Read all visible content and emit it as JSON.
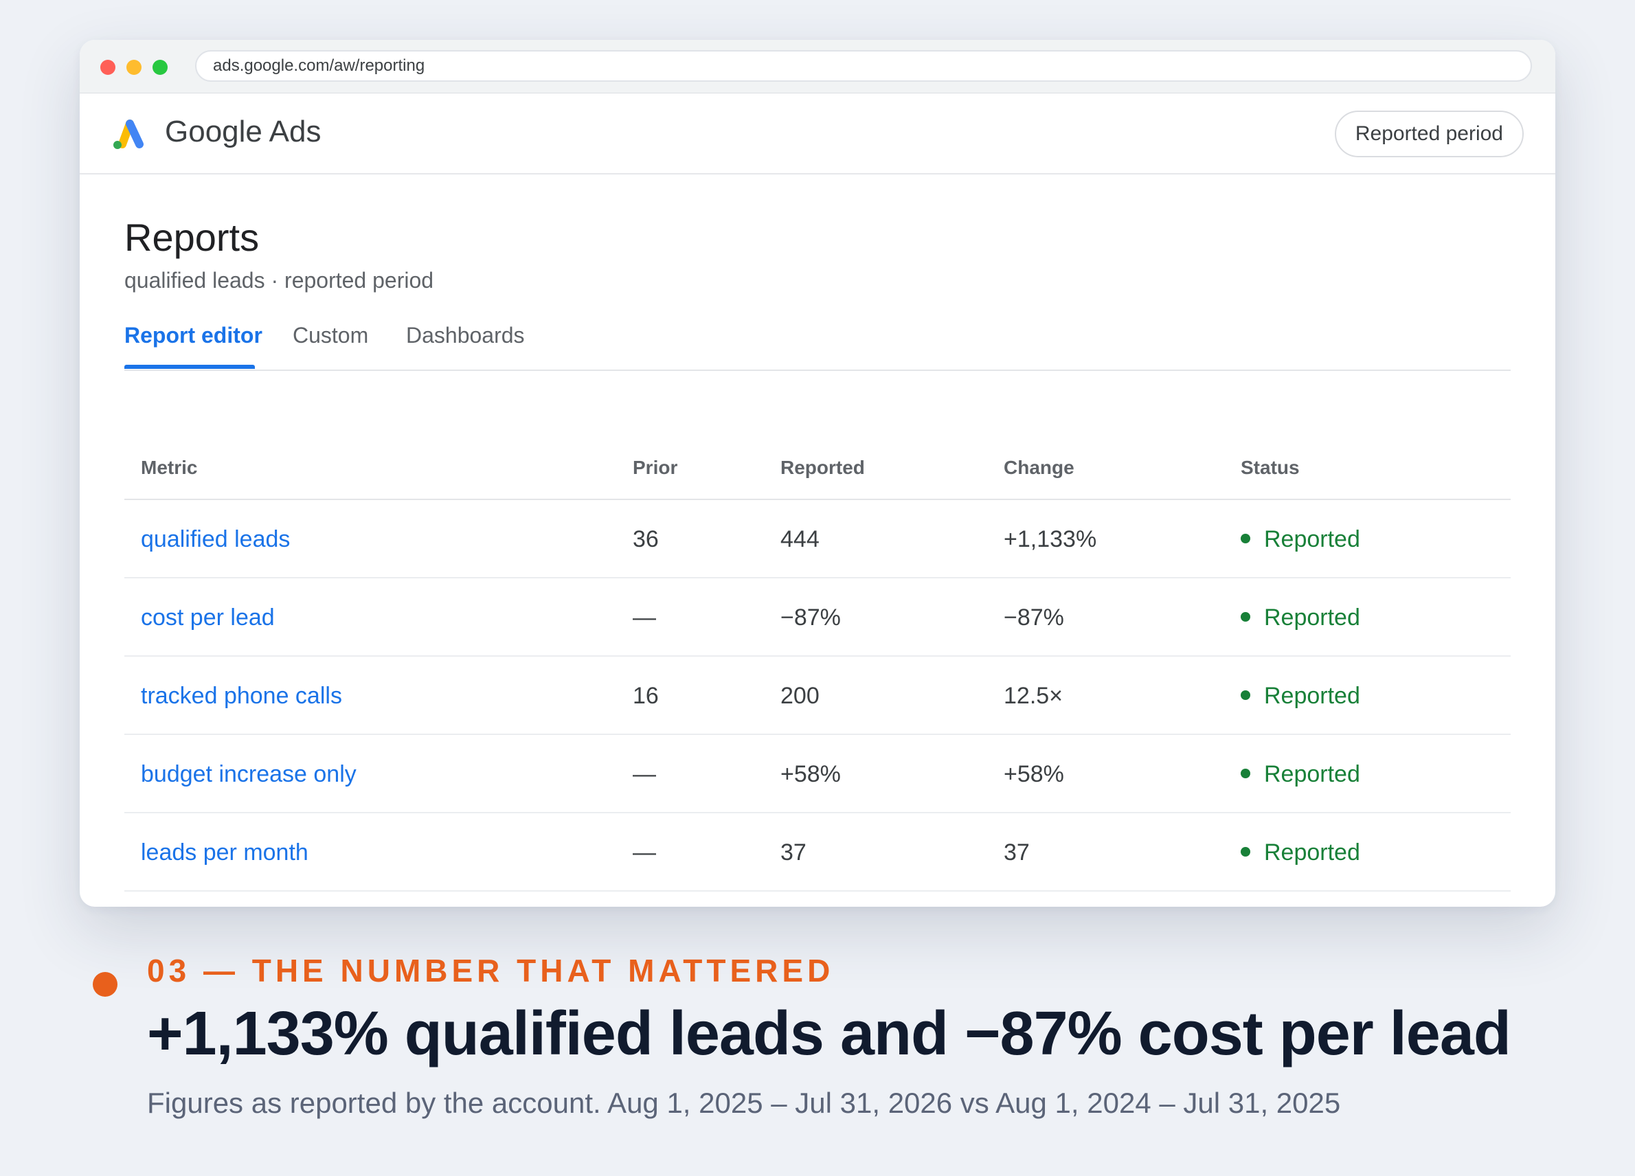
{
  "browser": {
    "url": "ads.google.com/aw/reporting",
    "colors": {
      "close": "#ff5f57",
      "minimize": "#febc2e",
      "maximize": "#28c840"
    }
  },
  "app": {
    "name": "Google Ads",
    "logo_icon": "google-ads-logo",
    "period_button": "Reported period"
  },
  "page": {
    "title": "Reports",
    "subtitle": "qualified leads · reported period"
  },
  "tabs": [
    {
      "label": "Report editor",
      "active": true
    },
    {
      "label": "Custom",
      "active": false
    },
    {
      "label": "Dashboards",
      "active": false
    }
  ],
  "table": {
    "headers": [
      "Metric",
      "Prior",
      "Reported",
      "Change",
      "Status"
    ],
    "rows": [
      {
        "metric": "qualified leads",
        "prior": "36",
        "reported": "444",
        "change": "+1,133%",
        "status": "Reported"
      },
      {
        "metric": "cost per lead",
        "prior": "—",
        "reported": "−87%",
        "change": "−87%",
        "status": "Reported"
      },
      {
        "metric": "tracked phone calls",
        "prior": "16",
        "reported": "200",
        "change": "12.5×",
        "status": "Reported"
      },
      {
        "metric": "budget increase only",
        "prior": "—",
        "reported": "+58%",
        "change": "+58%",
        "status": "Reported"
      },
      {
        "metric": "leads per month",
        "prior": "—",
        "reported": "37",
        "change": "37",
        "status": "Reported"
      }
    ]
  },
  "caption": {
    "eyebrow": "03 — THE NUMBER THAT MATTERED",
    "headline": "+1,133% qualified leads and −87% cost per lead",
    "footnote": "Figures as reported by the account. Aug 1, 2025 – Jul 31, 2026 vs Aug 1, 2024 – Jul 31, 2025",
    "accent_color": "#e8601c"
  },
  "colors": {
    "link_blue": "#1a73e8",
    "status_green": "#188038",
    "background": "#eef1f6"
  }
}
